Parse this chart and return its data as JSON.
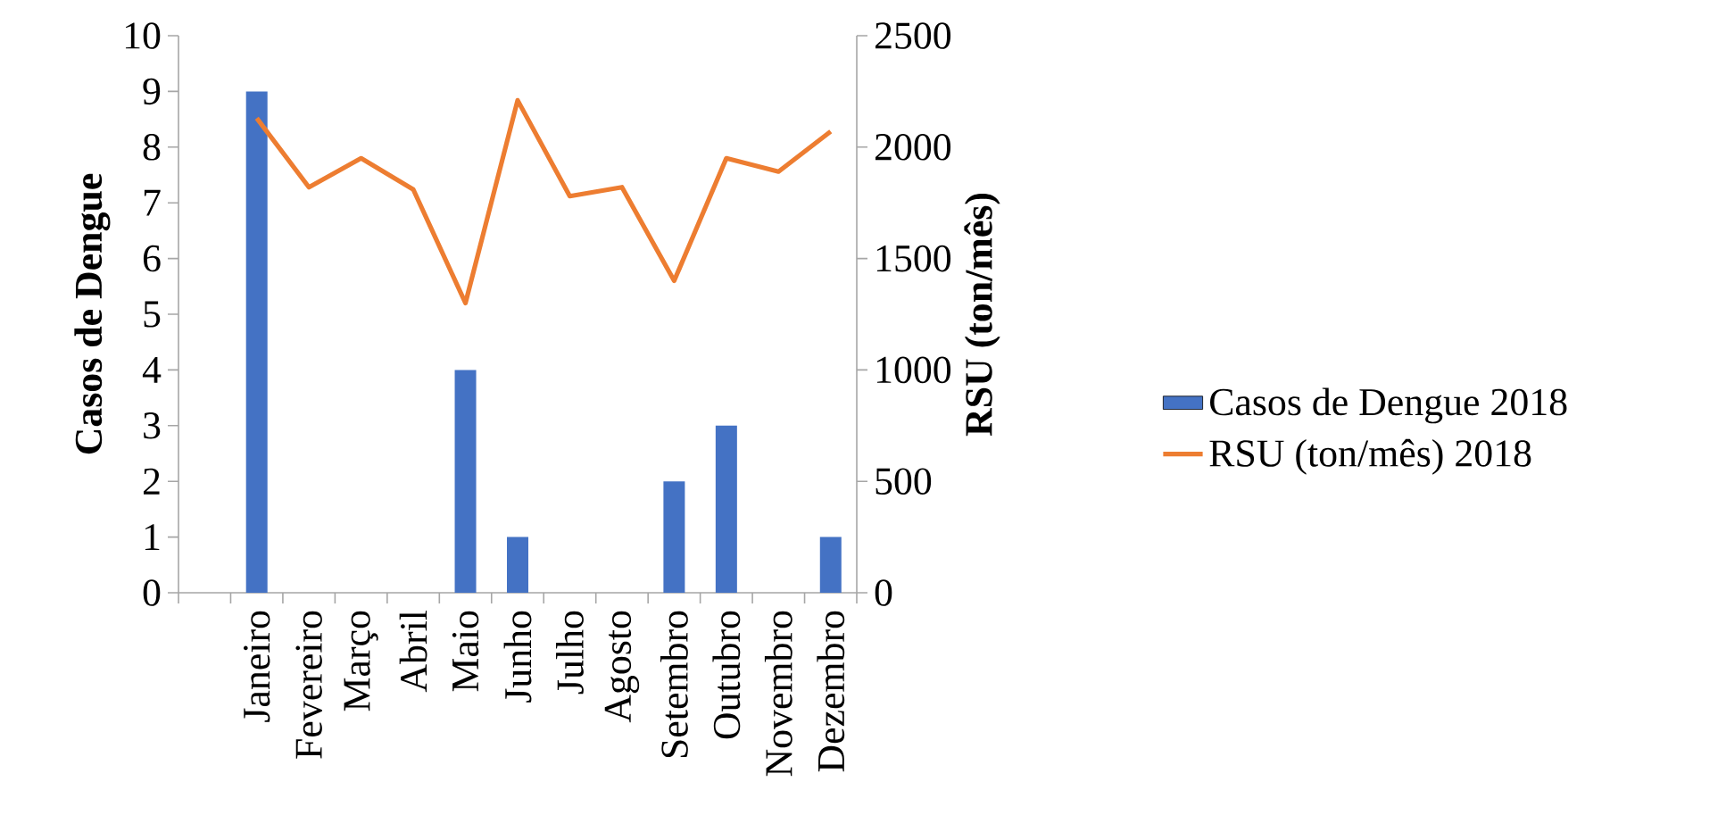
{
  "chart_data": {
    "type": "bar",
    "categories": [
      null,
      "Janeiro",
      "Fevereiro",
      "Março",
      "Abril",
      "Maio",
      "Junho",
      "Julho",
      "Agosto",
      "Setembro",
      "Outubro",
      "Novembro",
      "Dezembro"
    ],
    "series": [
      {
        "name": "Casos de Dengue 2018",
        "color": "#4472c4",
        "values": [
          null,
          9,
          0,
          0,
          0,
          4,
          1,
          0,
          0,
          2,
          3,
          0,
          1
        ]
      },
      {
        "name": "RSU (ton/mês) 2018",
        "type": "line",
        "axis": "y2",
        "color": "#ed7d31",
        "values": [
          null,
          2130,
          1820,
          1950,
          1810,
          1300,
          2210,
          1780,
          1820,
          1400,
          1950,
          1890,
          2070
        ]
      }
    ],
    "ylabel": "Casos de Dengue",
    "y2label": "RSU (ton/mês)",
    "ylim": [
      0,
      10
    ],
    "yticks": [
      0,
      1,
      2,
      3,
      4,
      5,
      6,
      7,
      8,
      9,
      10
    ],
    "y2lim": [
      0,
      2500
    ],
    "y2ticks": [
      0,
      500,
      1000,
      1500,
      2000,
      2500
    ],
    "legend": "right"
  }
}
